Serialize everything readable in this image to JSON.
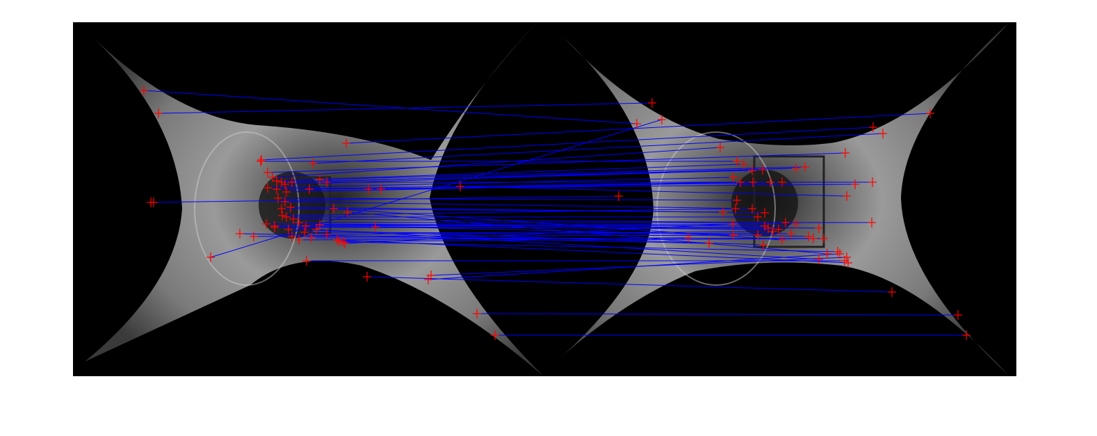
{
  "figure": {
    "panels": [
      {
        "name": "left-image",
        "description_tag": "omnidirectional-unwarped-corridor"
      },
      {
        "name": "right-image",
        "description_tag": "omnidirectional-unwarped-corridor"
      }
    ],
    "colors": {
      "background": "#ffffff",
      "image_frame": "#000000",
      "match_line": "#0000ff",
      "keypoint_marker": "#ff0000"
    },
    "match_count": 58
  }
}
